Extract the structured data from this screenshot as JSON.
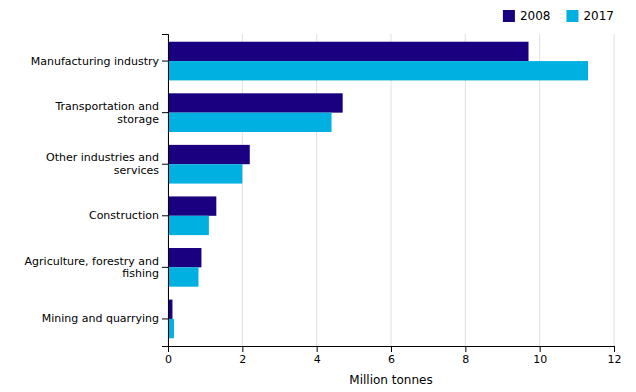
{
  "chart_data": {
    "type": "bar",
    "orientation": "horizontal",
    "categories": [
      "Manufacturing industry",
      "Transportation and\nstorage",
      "Other industries and\nservices",
      "Construction",
      "Agriculture, forestry and\nfishing",
      "Mining and quarrying"
    ],
    "series": [
      {
        "name": "2008",
        "color": "#1a0080",
        "values": [
          9.7,
          4.7,
          2.2,
          1.3,
          0.9,
          0.12
        ]
      },
      {
        "name": "2017",
        "color": "#00b0e0",
        "values": [
          11.3,
          4.4,
          2.0,
          1.1,
          0.82,
          0.16
        ]
      }
    ],
    "xlabel": "Million tonnes",
    "xlim": [
      0,
      12
    ],
    "xticks": [
      0,
      2,
      4,
      6,
      8,
      10,
      12
    ],
    "grid": true,
    "legend": "upper right"
  }
}
